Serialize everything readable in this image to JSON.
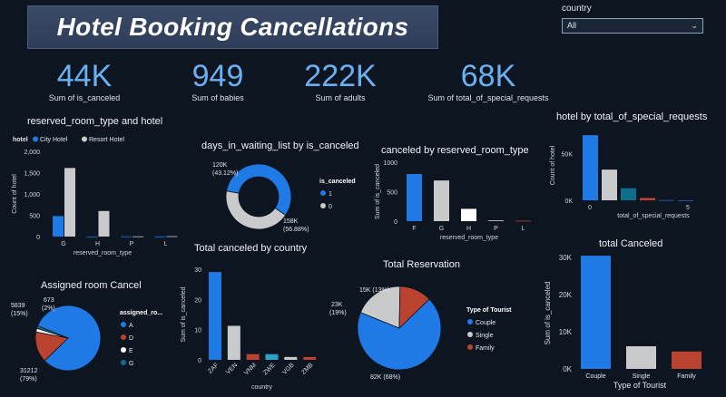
{
  "header": {
    "title": "Hotel Booking Cancellations"
  },
  "slicer": {
    "label": "country",
    "value": "All"
  },
  "kpis": [
    {
      "value": "44K",
      "caption": "Sum of is_canceled"
    },
    {
      "value": "949",
      "caption": "Sum of babies"
    },
    {
      "value": "222K",
      "caption": "Sum of adults"
    },
    {
      "value": "68K",
      "caption": "Sum of total_of_special_requests"
    }
  ],
  "colors": {
    "blue": "#1f7ae6",
    "grey": "#c8cacc",
    "red": "#b9432f",
    "teal": "#0f6f8a",
    "kpi": "#6ab0f3"
  },
  "chart_data": [
    {
      "id": "room_type_hotel",
      "type": "bar",
      "title": "reserved_room_type and hotel",
      "legend_title": "hotel",
      "xlabel": "reserved_room_type",
      "ylabel": "Count of hotel",
      "categories": [
        "G",
        "H",
        "P",
        "L"
      ],
      "yticks": [
        "0",
        "500",
        "1,000",
        "1,500",
        "2,000"
      ],
      "ylim": [
        0,
        2000
      ],
      "series": [
        {
          "name": "City Hotel",
          "color": "#1f7ae6",
          "values": [
            480,
            0,
            5,
            3
          ]
        },
        {
          "name": "Resort Hotel",
          "color": "#c8cacc",
          "values": [
            1610,
            600,
            5,
            8
          ]
        }
      ]
    },
    {
      "id": "waiting_donut",
      "type": "pie",
      "title": "days_in_waiting_list by is_canceled",
      "legend_title": "is_canceled",
      "slices": [
        {
          "name": "1",
          "value": 158,
          "label": "158K",
          "pct": "(56.88%)",
          "color": "#1f7ae6"
        },
        {
          "name": "0",
          "value": 120,
          "label": "120K",
          "pct": "(43.12%)",
          "color": "#c8cacc"
        }
      ]
    },
    {
      "id": "canceled_room_type",
      "type": "bar",
      "title": "canceled by reserved_room_type",
      "xlabel": "reserved_room_type",
      "ylabel": "Sum of is_canceled",
      "categories": [
        "F",
        "G",
        "H",
        "P",
        "L"
      ],
      "yticks": [
        "0",
        "500",
        "1000"
      ],
      "ylim": [
        0,
        1100
      ],
      "values": [
        880,
        760,
        230,
        15,
        8
      ],
      "colors": [
        "#1f7ae6",
        "#c8cacc",
        "#ffffff",
        "#c8cacc",
        "#b9432f"
      ]
    },
    {
      "id": "hotel_special",
      "type": "bar",
      "title": "hotel by total_of_special_requests",
      "xlabel": "total_of_special_requests",
      "ylabel": "Count of hotel",
      "yticks": [
        "0K",
        "50K"
      ],
      "xticks": [
        "0",
        "5"
      ],
      "ylim": [
        0,
        75000
      ],
      "values": [
        70000,
        33000,
        13000,
        2500,
        400,
        100
      ],
      "colors": [
        "#1f7ae6",
        "#c8cacc",
        "#0f6f8a",
        "#b9432f",
        "#2a4a8a",
        "#2a4a8a"
      ]
    },
    {
      "id": "canceled_country",
      "type": "bar",
      "title": "Total canceled by country",
      "xlabel": "country",
      "ylabel": "Sum of is_canceled",
      "categories": [
        "ZAF",
        "VEN",
        "VNM",
        "ZWE",
        "VGB",
        "ZMB"
      ],
      "yticks": [
        "0",
        "10",
        "20",
        "30"
      ],
      "ylim": [
        0,
        32
      ],
      "values": [
        31,
        12,
        2,
        2,
        1,
        1
      ],
      "colors": [
        "#1f7ae6",
        "#c8cacc",
        "#b9432f",
        "#29a3c7",
        "#c8cacc",
        "#b9432f"
      ]
    },
    {
      "id": "assigned_room_cancel",
      "type": "pie",
      "title": "Assigned room Cancel",
      "legend_title": "assigned_ro...",
      "slices": [
        {
          "name": "A",
          "value": 31212,
          "label": "31212",
          "pct": "(79%)",
          "color": "#1f7ae6"
        },
        {
          "name": "D",
          "value": 5839,
          "label": "5839",
          "pct": "(15%)",
          "color": "#b9432f"
        },
        {
          "name": "E",
          "value": 673,
          "label": "673",
          "pct": "(2%)",
          "color": "#ffffff"
        },
        {
          "name": "G",
          "value": 500,
          "label": "",
          "pct": "",
          "color": "#0f6f8a"
        }
      ]
    },
    {
      "id": "total_reservation",
      "type": "pie",
      "title": "Total Reservation",
      "legend_title": "Type of Tourist",
      "slices": [
        {
          "name": "Couple",
          "value": 82,
          "label": "82K",
          "pct": "(68%)",
          "color": "#1f7ae6"
        },
        {
          "name": "Single",
          "value": 23,
          "label": "23K",
          "pct": "(19%)",
          "color": "#c8cacc"
        },
        {
          "name": "Family",
          "value": 15,
          "label": "15K",
          "pct": "(13%)",
          "color": "#b9432f"
        }
      ]
    },
    {
      "id": "total_canceled",
      "type": "bar",
      "title": "total Canceled",
      "xlabel": "Type of Tourist",
      "ylabel": "Sum of is_canceled",
      "categories": [
        "Couple",
        "Single",
        "Family"
      ],
      "yticks": [
        "0K",
        "10K",
        "20K",
        "30K"
      ],
      "ylim": [
        0,
        32000
      ],
      "values": [
        32500,
        6500,
        5000
      ],
      "colors": [
        "#1f7ae6",
        "#c8cacc",
        "#b9432f"
      ]
    }
  ]
}
